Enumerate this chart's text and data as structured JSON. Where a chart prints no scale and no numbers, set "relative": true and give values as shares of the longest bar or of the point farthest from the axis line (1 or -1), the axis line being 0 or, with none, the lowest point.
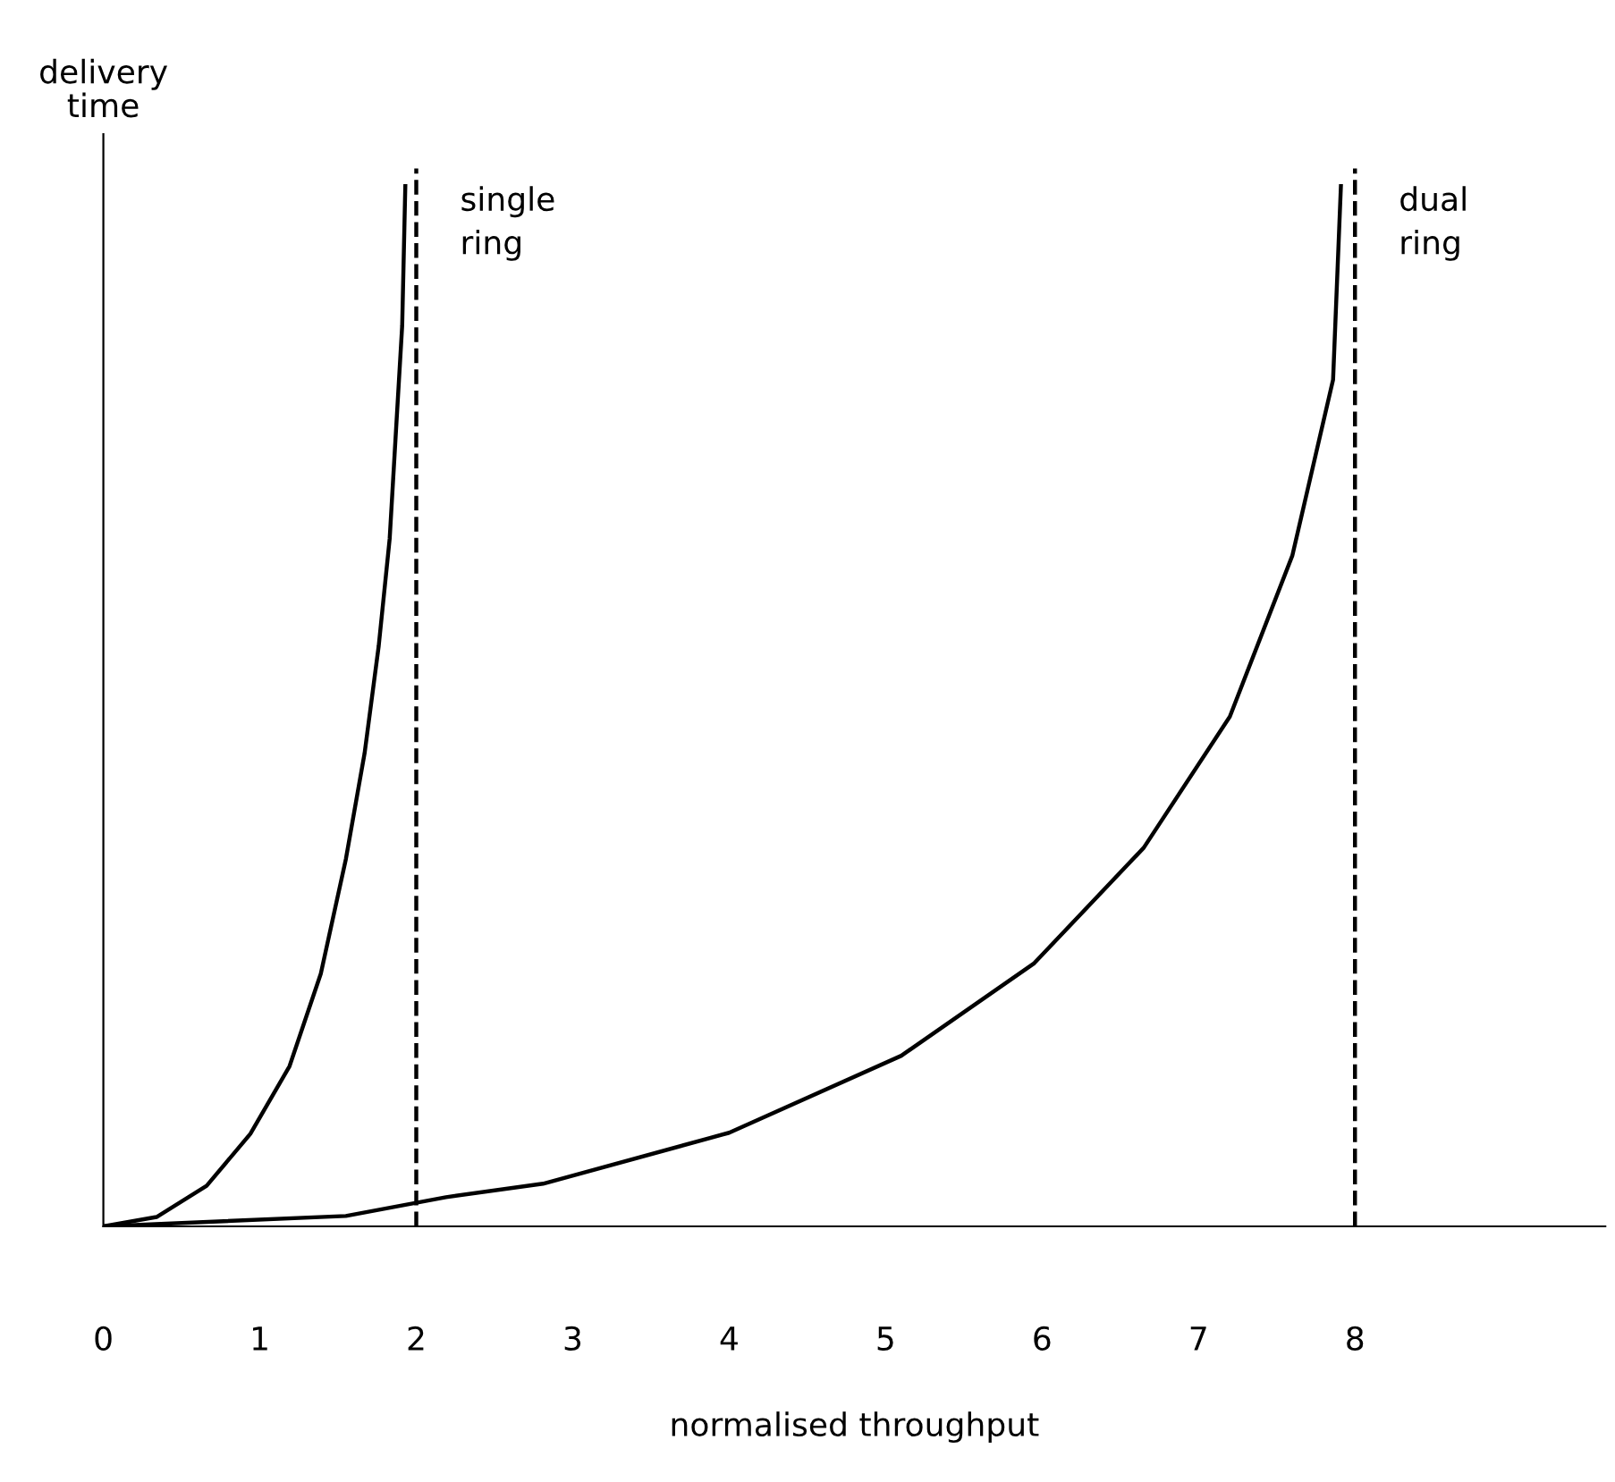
{
  "chart_data": {
    "type": "line",
    "relative": true,
    "xlabel": "normalised throughput",
    "ylabel": "delivery\ntime",
    "xlim": [
      0,
      9.6
    ],
    "xticks": [
      0,
      1,
      2,
      3,
      4,
      5,
      6,
      7,
      8
    ],
    "series": [
      {
        "color": "#000000",
        "x": [
          0,
          0.34,
          0.66,
          0.94,
          1.19,
          1.39,
          1.55,
          1.67,
          1.76,
          1.83,
          1.87,
          1.91,
          1.93
        ],
        "values": [
          0,
          0.009,
          0.039,
          0.089,
          0.154,
          0.243,
          0.353,
          0.455,
          0.558,
          0.661,
          0.764,
          0.866,
          1.0
        ]
      },
      {
        "color": "#000000",
        "x": [
          0,
          1.55,
          2.19,
          2.81,
          4.0,
          5.1,
          5.95,
          6.65,
          7.2,
          7.6,
          7.86,
          7.91
        ],
        "values": [
          0,
          0.01,
          0.028,
          0.041,
          0.09,
          0.164,
          0.253,
          0.364,
          0.49,
          0.645,
          0.814,
          1.0
        ]
      }
    ],
    "ref_lines": [
      {
        "axis": "x",
        "value": 2,
        "label": "single\nring",
        "color": "#000000",
        "line_style": "dashed"
      },
      {
        "axis": "x",
        "value": 8,
        "label": "dual\nring",
        "color": "#000000",
        "line_style": "dashed"
      }
    ],
    "grid": false,
    "legend": false,
    "marker": "none",
    "line_style": "solid"
  }
}
